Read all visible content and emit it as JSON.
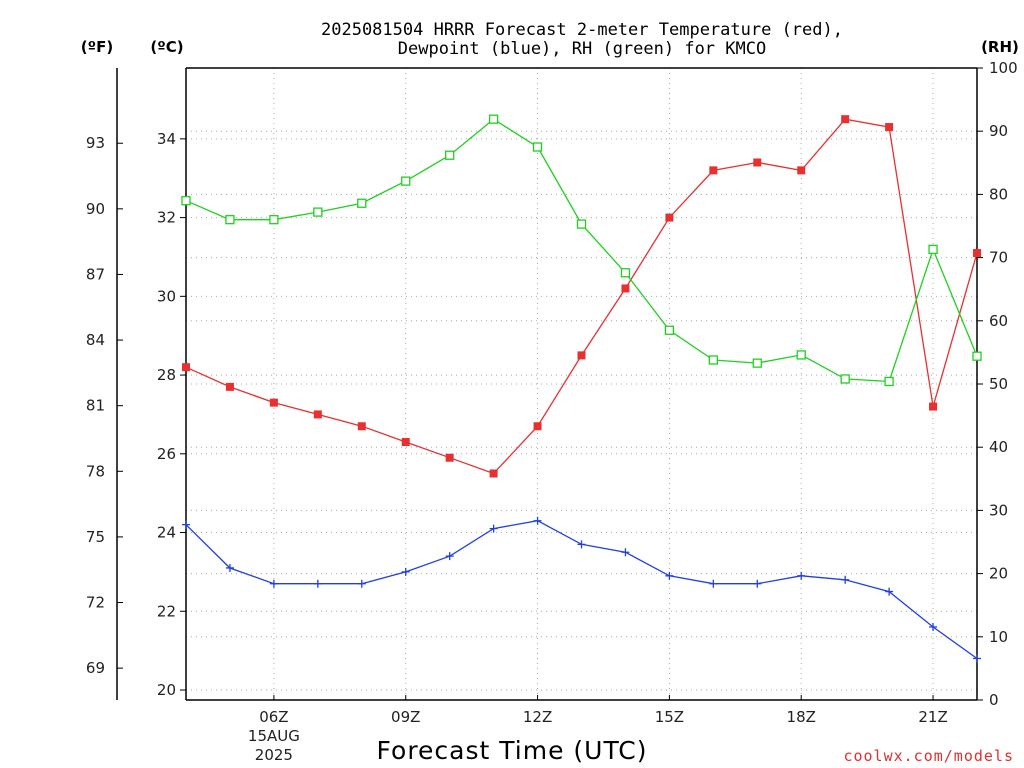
{
  "chart_data": {
    "type": "line",
    "title_line1": "2025081504 HRRR Forecast 2-meter Temperature (red),",
    "title_line2": "Dewpoint (blue), RH (green) for KMCO",
    "xlabel": "Forecast Time (UTC)",
    "credit": "coolwx.com/models",
    "unit_f": "(ºF)",
    "unit_c": "(ºC)",
    "unit_rh": "(RH)",
    "x_hours": [
      4,
      5,
      6,
      7,
      8,
      9,
      10,
      11,
      12,
      13,
      14,
      15,
      16,
      17,
      18,
      19,
      20,
      21,
      22
    ],
    "x_ticks": [
      {
        "hour": 6,
        "label": "06Z",
        "sub1": "15AUG",
        "sub2": "2025"
      },
      {
        "hour": 9,
        "label": "09Z"
      },
      {
        "hour": 12,
        "label": "12Z"
      },
      {
        "hour": 15,
        "label": "15Z"
      },
      {
        "hour": 18,
        "label": "18Z"
      },
      {
        "hour": 21,
        "label": "21Z"
      }
    ],
    "c_ticks": [
      20,
      22,
      24,
      26,
      28,
      30,
      32,
      34
    ],
    "c_range": [
      20,
      35.8
    ],
    "f_ticks": [
      69,
      72,
      75,
      78,
      81,
      84,
      87,
      90,
      93
    ],
    "rh_ticks": [
      0,
      10,
      20,
      30,
      40,
      50,
      60,
      70,
      80,
      90,
      100
    ],
    "rh_range": [
      0,
      100
    ],
    "grid": true,
    "series": [
      {
        "name": "Temperature",
        "axis": "C",
        "color": "#e83030",
        "marker": "filled-square",
        "values": [
          28.2,
          27.7,
          27.3,
          27.0,
          26.7,
          26.3,
          25.9,
          25.5,
          26.7,
          28.5,
          30.2,
          32.0,
          33.2,
          33.4,
          33.2,
          34.5,
          34.3,
          27.2,
          31.1
        ]
      },
      {
        "name": "Dewpoint",
        "axis": "C",
        "color": "#2040e0",
        "marker": "plus",
        "values": [
          24.2,
          23.1,
          22.7,
          22.7,
          22.7,
          23.0,
          23.4,
          24.1,
          24.3,
          23.7,
          23.5,
          22.9,
          22.7,
          22.7,
          22.9,
          22.8,
          22.5,
          21.6,
          20.8
        ]
      },
      {
        "name": "RH",
        "axis": "RH",
        "color": "#20d020",
        "marker": "open-square",
        "values": [
          79,
          76,
          76,
          77.2,
          78.6,
          82.1,
          86.2,
          91.9,
          87.5,
          75.3,
          67.6,
          58.5,
          53.8,
          53.3,
          54.6,
          50.8,
          50.4,
          71.3,
          54.4
        ]
      }
    ]
  }
}
